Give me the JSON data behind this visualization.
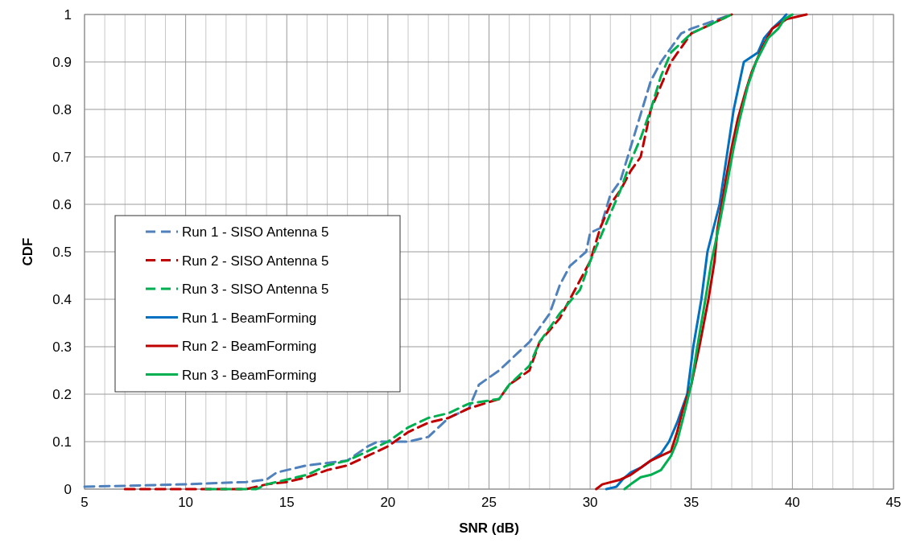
{
  "chart_data": {
    "type": "line",
    "xlabel": "SNR (dB)",
    "ylabel": "CDF",
    "xlim": [
      5,
      45
    ],
    "ylim": [
      0,
      1
    ],
    "xticks": [
      5,
      {
        "value": 6,
        "label": null
      },
      {
        "value": 7,
        "label": null
      },
      {
        "value": 8,
        "label": null
      },
      {
        "value": 9,
        "label": null
      },
      10,
      {
        "value": 11,
        "label": null
      },
      {
        "value": 12,
        "label": null
      },
      {
        "value": 13,
        "label": null
      },
      {
        "value": 14,
        "label": null
      },
      15,
      {
        "value": 16,
        "label": null
      },
      {
        "value": 17,
        "label": null
      },
      {
        "value": 18,
        "label": null
      },
      {
        "value": 19,
        "label": null
      },
      20,
      {
        "value": 21,
        "label": null
      },
      {
        "value": 22,
        "label": null
      },
      {
        "value": 23,
        "label": null
      },
      {
        "value": 24,
        "label": null
      },
      25,
      {
        "value": 26,
        "label": null
      },
      {
        "value": 27,
        "label": null
      },
      {
        "value": 28,
        "label": null
      },
      {
        "value": 29,
        "label": null
      },
      30,
      {
        "value": 31,
        "label": null
      },
      {
        "value": 32,
        "label": null
      },
      {
        "value": 33,
        "label": null
      },
      {
        "value": 34,
        "label": null
      },
      35,
      {
        "value": 36,
        "label": null
      },
      {
        "value": 37,
        "label": null
      },
      {
        "value": 38,
        "label": null
      },
      {
        "value": 39,
        "label": null
      },
      40,
      {
        "value": 41,
        "label": null
      },
      {
        "value": 42,
        "label": null
      },
      {
        "value": 43,
        "label": null
      },
      {
        "value": 44,
        "label": null
      },
      45
    ],
    "yticks": [
      0,
      0.1,
      0.2,
      0.3,
      0.4,
      0.5,
      0.6,
      0.7,
      0.8,
      0.9,
      1
    ],
    "grid": true,
    "legend": "left",
    "marker": "none",
    "series": [
      {
        "name": "Run 1 - SISO Antenna 5",
        "color": "#4f81bd",
        "line_style": "dashed",
        "x": [
          5,
          10,
          13,
          14,
          14.5,
          16,
          18,
          19,
          19.5,
          21,
          22,
          23,
          24,
          24.5,
          25.5,
          26.5,
          27,
          28,
          28.5,
          29,
          29.8,
          30,
          30.5,
          31,
          31.5,
          32,
          32.5,
          33,
          33.5,
          34,
          34.5,
          35,
          36,
          37
        ],
        "values": [
          0.005,
          0.01,
          0.015,
          0.02,
          0.035,
          0.05,
          0.06,
          0.09,
          0.1,
          0.1,
          0.11,
          0.15,
          0.17,
          0.22,
          0.25,
          0.29,
          0.31,
          0.37,
          0.43,
          0.47,
          0.5,
          0.54,
          0.55,
          0.62,
          0.65,
          0.72,
          0.79,
          0.86,
          0.9,
          0.93,
          0.96,
          0.97,
          0.985,
          1
        ]
      },
      {
        "name": "Run 2 - SISO Antenna 5",
        "color": "#c00000",
        "line_style": "dashed",
        "x": [
          7,
          13,
          14,
          15,
          16,
          17,
          18,
          19,
          20,
          21,
          22,
          23,
          24,
          25.5,
          26,
          27,
          27.5,
          28.5,
          29,
          30,
          30.5,
          31,
          31.5,
          32,
          32.5,
          33,
          33.5,
          34,
          35,
          36,
          37
        ],
        "values": [
          0,
          0,
          0.01,
          0.015,
          0.025,
          0.04,
          0.05,
          0.07,
          0.09,
          0.12,
          0.14,
          0.15,
          0.17,
          0.19,
          0.22,
          0.25,
          0.31,
          0.36,
          0.4,
          0.48,
          0.55,
          0.6,
          0.63,
          0.67,
          0.7,
          0.8,
          0.85,
          0.9,
          0.96,
          0.98,
          1
        ]
      },
      {
        "name": "Run 3 - SISO Antenna 5",
        "color": "#00b050",
        "line_style": "dashed",
        "x": [
          11,
          13.5,
          14,
          15,
          16,
          17,
          18,
          19,
          20,
          21,
          22,
          23,
          24,
          25.5,
          26,
          27,
          27.5,
          28.5,
          29.5,
          30,
          31,
          31.5,
          32,
          32.5,
          33,
          33.5,
          34,
          35,
          36,
          37
        ],
        "values": [
          0,
          0,
          0.01,
          0.02,
          0.03,
          0.05,
          0.06,
          0.08,
          0.1,
          0.13,
          0.15,
          0.16,
          0.18,
          0.19,
          0.22,
          0.26,
          0.31,
          0.37,
          0.42,
          0.48,
          0.58,
          0.63,
          0.69,
          0.74,
          0.8,
          0.87,
          0.92,
          0.96,
          0.98,
          1
        ]
      },
      {
        "name": "Run 1 - BeamForming",
        "color": "#0070c0",
        "line_style": "solid",
        "x": [
          30.8,
          31.3,
          31.6,
          32,
          32.5,
          33,
          33.5,
          33.9,
          34.3,
          34.8,
          35.1,
          35.5,
          35.8,
          36.4,
          36.75,
          37.1,
          37.6,
          38.3,
          38.6,
          39,
          39.5,
          39.7
        ],
        "values": [
          0,
          0.005,
          0.02,
          0.035,
          0.045,
          0.06,
          0.075,
          0.1,
          0.14,
          0.2,
          0.3,
          0.4,
          0.5,
          0.6,
          0.7,
          0.8,
          0.9,
          0.92,
          0.95,
          0.97,
          0.99,
          1
        ]
      },
      {
        "name": "Run 2 - BeamForming",
        "color": "#c00000",
        "line_style": "solid",
        "x": [
          30.3,
          30.6,
          31.5,
          32,
          32.5,
          33,
          33.5,
          34,
          34.3,
          34.6,
          35,
          35.4,
          35.85,
          36.15,
          36.3,
          36.7,
          37,
          37.3,
          37.7,
          38,
          38.5,
          39,
          39.7,
          40.7
        ],
        "values": [
          0,
          0.01,
          0.02,
          0.03,
          0.045,
          0.06,
          0.07,
          0.08,
          0.12,
          0.17,
          0.22,
          0.3,
          0.4,
          0.48,
          0.55,
          0.65,
          0.72,
          0.78,
          0.84,
          0.88,
          0.93,
          0.97,
          0.99,
          1
        ]
      },
      {
        "name": "Run 3 - BeamForming",
        "color": "#00b050",
        "line_style": "solid",
        "x": [
          31.7,
          32,
          32.5,
          33,
          33.5,
          34,
          34.3,
          34.6,
          35,
          35.3,
          35.7,
          36,
          36.4,
          36.8,
          37.1,
          37.4,
          37.8,
          38.2,
          38.8,
          39.3,
          39.6,
          40
        ],
        "values": [
          0,
          0.01,
          0.025,
          0.03,
          0.04,
          0.07,
          0.1,
          0.15,
          0.22,
          0.3,
          0.4,
          0.48,
          0.56,
          0.65,
          0.72,
          0.78,
          0.85,
          0.9,
          0.95,
          0.97,
          0.99,
          1
        ]
      }
    ]
  }
}
